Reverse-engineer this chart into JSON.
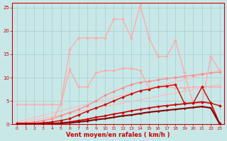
{
  "background_color": "#c8e8e8",
  "grid_color": "#aacccc",
  "xlabel": "Vent moyen/en rafales ( km/h )",
  "xlabel_color": "#cc0000",
  "xlim": [
    -0.5,
    23.5
  ],
  "ylim": [
    0,
    26
  ],
  "xticks": [
    0,
    1,
    2,
    3,
    4,
    5,
    6,
    7,
    8,
    9,
    10,
    11,
    12,
    13,
    14,
    15,
    16,
    17,
    18,
    19,
    20,
    21,
    22,
    23
  ],
  "yticks": [
    0,
    5,
    10,
    15,
    20,
    25
  ],
  "tick_color": "#cc0000",
  "series": [
    {
      "label": "trend_low_pink",
      "x": [
        0,
        23
      ],
      "y": [
        0.2,
        8.5
      ],
      "color": "#ffbbbb",
      "lw": 0.9,
      "marker": null,
      "zorder": 1
    },
    {
      "label": "trend_high_pink",
      "x": [
        0,
        23
      ],
      "y": [
        0.5,
        11.5
      ],
      "color": "#ffbbbb",
      "lw": 0.9,
      "marker": null,
      "zorder": 1
    },
    {
      "label": "light_pink_high_peaks",
      "x": [
        0,
        1,
        2,
        3,
        4,
        5,
        6,
        7,
        8,
        9,
        10,
        11,
        12,
        13,
        14,
        15,
        16,
        17,
        18,
        19,
        20,
        21,
        22,
        23
      ],
      "y": [
        0.3,
        0.3,
        0.3,
        0.5,
        0.5,
        4.5,
        16.0,
        18.5,
        18.5,
        18.5,
        18.5,
        22.5,
        22.5,
        18.5,
        25.5,
        18.5,
        14.5,
        14.5,
        18.0,
        11.0,
        4.5,
        4.5,
        14.5,
        11.5
      ],
      "color": "#ffaaaa",
      "lw": 1.0,
      "marker": "D",
      "markersize": 2.0,
      "zorder": 3
    },
    {
      "label": "light_pink_medium",
      "x": [
        0,
        1,
        2,
        3,
        4,
        5,
        6,
        7,
        8,
        9,
        10,
        11,
        12,
        13,
        14,
        15,
        16,
        17,
        18,
        19,
        20,
        21,
        22,
        23
      ],
      "y": [
        4.2,
        4.2,
        4.2,
        4.2,
        4.2,
        4.2,
        11.8,
        8.0,
        8.0,
        11.0,
        11.5,
        11.5,
        12.0,
        12.0,
        11.5,
        7.8,
        8.0,
        8.0,
        7.8,
        7.8,
        8.0,
        8.0,
        8.0,
        8.0
      ],
      "color": "#ffaaaa",
      "lw": 1.0,
      "marker": "D",
      "markersize": 2.0,
      "zorder": 3
    },
    {
      "label": "medium_pink_lower",
      "x": [
        0,
        1,
        2,
        3,
        4,
        5,
        6,
        7,
        8,
        9,
        10,
        11,
        12,
        13,
        14,
        15,
        16,
        17,
        18,
        19,
        20,
        21,
        22,
        23
      ],
      "y": [
        0.3,
        0.3,
        0.5,
        0.8,
        1.2,
        1.8,
        2.5,
        3.2,
        4.0,
        5.0,
        6.2,
        7.0,
        7.8,
        8.5,
        9.0,
        9.2,
        9.5,
        9.8,
        10.0,
        10.3,
        10.5,
        10.8,
        11.0,
        11.2
      ],
      "color": "#ff8888",
      "lw": 0.9,
      "marker": "D",
      "markersize": 2.0,
      "zorder": 2
    },
    {
      "label": "dark_red_medium",
      "x": [
        0,
        1,
        2,
        3,
        4,
        5,
        6,
        7,
        8,
        9,
        10,
        11,
        12,
        13,
        14,
        15,
        16,
        17,
        18,
        19,
        20,
        21,
        22,
        23
      ],
      "y": [
        0.2,
        0.2,
        0.2,
        0.3,
        0.5,
        0.8,
        1.2,
        2.0,
        2.8,
        3.5,
        4.2,
        5.0,
        5.8,
        6.5,
        7.2,
        7.5,
        8.0,
        8.2,
        8.5,
        4.5,
        4.5,
        8.0,
        4.5,
        4.0
      ],
      "color": "#cc0000",
      "lw": 1.0,
      "marker": "D",
      "markersize": 2.0,
      "zorder": 4
    },
    {
      "label": "dark_red_low1",
      "x": [
        0,
        1,
        2,
        3,
        4,
        5,
        6,
        7,
        8,
        9,
        10,
        11,
        12,
        13,
        14,
        15,
        16,
        17,
        18,
        19,
        20,
        21,
        22,
        23
      ],
      "y": [
        0.1,
        0.1,
        0.1,
        0.1,
        0.2,
        0.3,
        0.5,
        0.8,
        1.1,
        1.5,
        1.8,
        2.2,
        2.5,
        2.9,
        3.2,
        3.5,
        3.8,
        4.0,
        4.2,
        4.4,
        4.6,
        4.8,
        4.5,
        0.2
      ],
      "color": "#cc0000",
      "lw": 1.2,
      "marker": "D",
      "markersize": 2.0,
      "zorder": 4
    },
    {
      "label": "dark_red_low2",
      "x": [
        0,
        1,
        2,
        3,
        4,
        5,
        6,
        7,
        8,
        9,
        10,
        11,
        12,
        13,
        14,
        15,
        16,
        17,
        18,
        19,
        20,
        21,
        22,
        23
      ],
      "y": [
        0.05,
        0.05,
        0.05,
        0.08,
        0.1,
        0.2,
        0.3,
        0.5,
        0.7,
        1.0,
        1.2,
        1.5,
        1.8,
        2.0,
        2.3,
        2.6,
        2.8,
        3.0,
        3.2,
        3.4,
        3.6,
        3.8,
        3.5,
        0.1
      ],
      "color": "#880000",
      "lw": 1.5,
      "marker": "D",
      "markersize": 1.5,
      "zorder": 5
    }
  ]
}
